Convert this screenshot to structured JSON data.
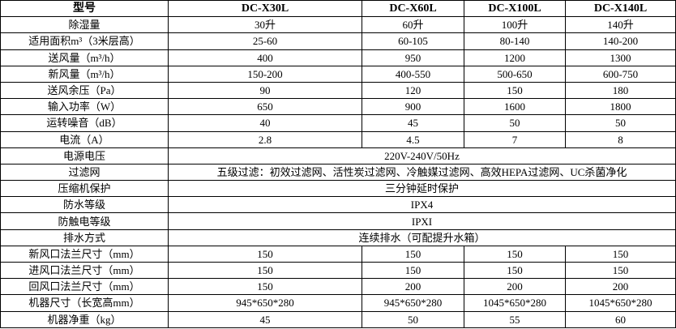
{
  "table": {
    "header": [
      "型号",
      "DC-X30L",
      "DC-X60L",
      "DC-X100L",
      "DC-X140L"
    ],
    "rows": [
      [
        "除湿量",
        "30升",
        "60升",
        "100升",
        "140升"
      ],
      [
        "适用面积m³（3米层高）",
        "25-60",
        "60-105",
        "80-140",
        "140-200"
      ],
      [
        "送风量（m³/h）",
        "400",
        "950",
        "1200",
        "1300"
      ],
      [
        "新风量（m³/h）",
        "150-200",
        "400-550",
        "500-650",
        "600-750"
      ],
      [
        "送风余压（Pa）",
        "90",
        "120",
        "150",
        "180"
      ],
      [
        "输入功率（W）",
        "650",
        "900",
        "1600",
        "1800"
      ],
      [
        "运转噪音（dB）",
        "40",
        "45",
        "50",
        "50"
      ],
      [
        "电流（A）",
        "2.8",
        "4.5",
        "7",
        "8"
      ],
      [
        "电源电压",
        "220V-240V/50Hz"
      ],
      [
        "过滤网",
        "五级过滤：初效过滤网、活性炭过滤网、冷触媒过滤网、高效HEPA过滤网、UC杀菌净化"
      ],
      [
        "压缩机保护",
        "三分钟延时保护"
      ],
      [
        "防水等级",
        "IPX4"
      ],
      [
        "防触电等级",
        "IPXI"
      ],
      [
        "排水方式",
        "连续排水（可配提升水箱）"
      ],
      [
        "新风口法兰尺寸（mm）",
        "150",
        "150",
        "150",
        "150"
      ],
      [
        "进风口法兰尺寸（mm）",
        "150",
        "150",
        "150",
        "150"
      ],
      [
        "回风口法兰尺寸（mm）",
        "150",
        "200",
        "200",
        "200"
      ],
      [
        "机器尺寸（长宽高mm）",
        "945*650*280",
        "945*650*280",
        "1045*650*280",
        "1045*650*280"
      ],
      [
        "机器净重（kg）",
        "45",
        "50",
        "55",
        "60"
      ]
    ]
  }
}
